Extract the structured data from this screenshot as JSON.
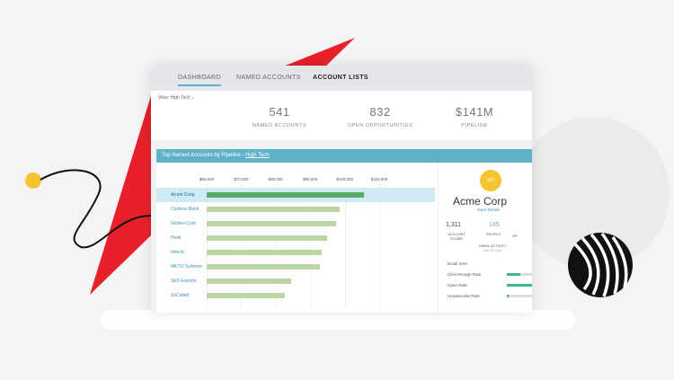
{
  "tabs": [
    {
      "label": "DASHBOARD",
      "active": true
    },
    {
      "label": "NAMED ACCOUNTS"
    },
    {
      "label": "ACCOUNT LISTS"
    }
  ],
  "view": {
    "label": "View:",
    "value": "High Tech"
  },
  "stats": [
    {
      "value": "541",
      "label": "NAMED ACCOUNTS"
    },
    {
      "value": "832",
      "label": "OPEN OPPORTUNITIES"
    },
    {
      "value": "$141M",
      "label": "PIPELINE"
    }
  ],
  "chart_header": {
    "title": "Top Named Accounts by Pipeline - ",
    "link": "High Tech"
  },
  "chart_data": {
    "type": "bar",
    "orientation": "horizontal",
    "ticks": [
      "$60,000",
      "$70,000",
      "$80,000",
      "$90,000",
      "$100,000",
      "$110,000"
    ],
    "xlim": [
      60000,
      110000
    ],
    "categories": [
      "Acme Corp",
      "Contoso Bank",
      "Globex Corp",
      "Hooli",
      "Initech",
      "MKTO Systems",
      "SES Exports",
      "SoCalled"
    ],
    "values": [
      105600,
      98500,
      97500,
      94900,
      93300,
      92800,
      84500,
      82700
    ],
    "highlighted": "Acme Corp",
    "colors": {
      "highlight": "#5aaa66",
      "normal": "#bcd6a3"
    }
  },
  "account": {
    "logo": "337",
    "name": "Acme Corp",
    "more": "More Details",
    "score": "1,311",
    "score_label": "ACCOUNT SCORE",
    "people": "145",
    "people_label": "PEOPLE",
    "op_label": "OP",
    "email_activity": "EMAIL ACTIVITY",
    "email_period": "Last 30 Days",
    "metrics": [
      {
        "label": "Email Sent",
        "value": 0
      },
      {
        "label": "Click-through Rate",
        "value": 0.5
      },
      {
        "label": "Open Rate",
        "value": 1.0
      },
      {
        "label": "Unsubscribe Rate",
        "value": 0.08
      }
    ]
  }
}
